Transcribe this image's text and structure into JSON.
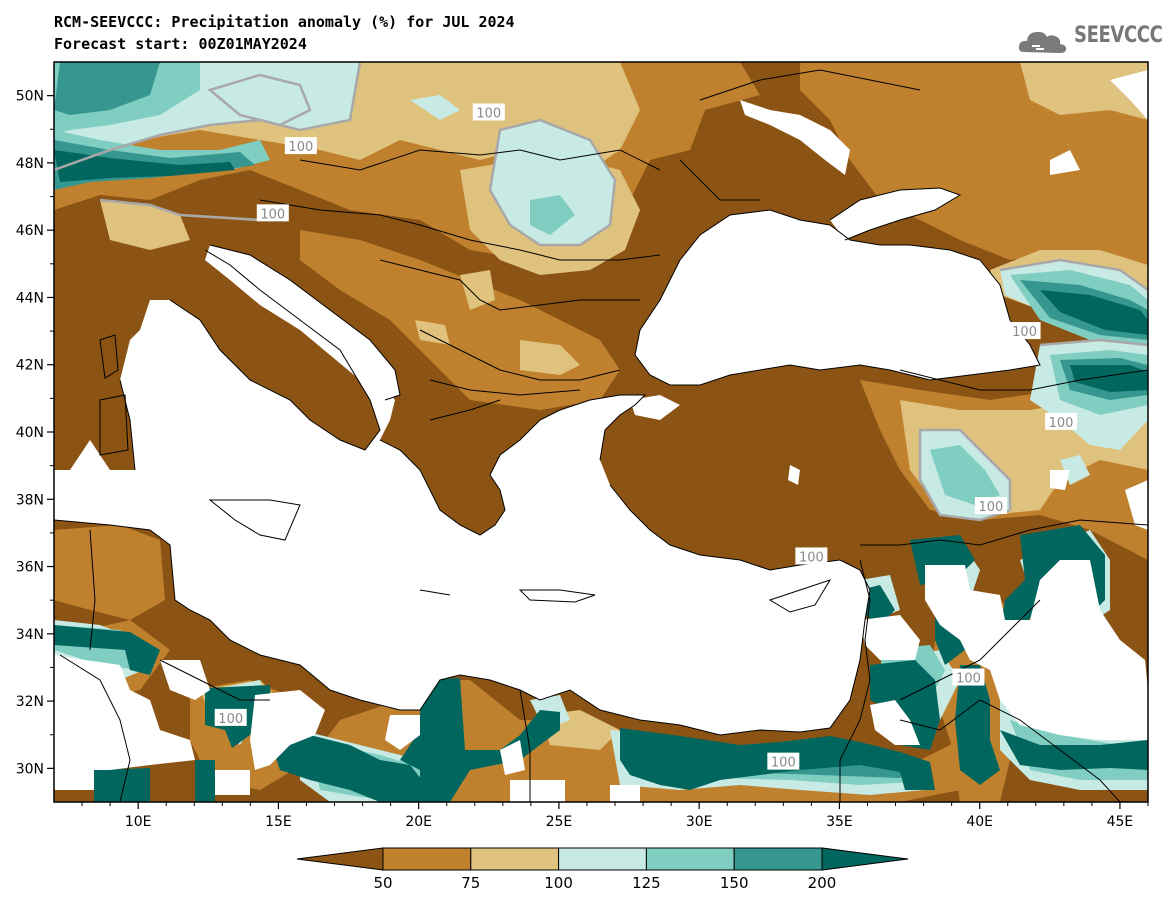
{
  "header": {
    "title_line1": "RCM-SEEVCCC: Precipitation anomaly (%) for JUL 2024",
    "title_line2": "Forecast start: 00Z01MAY2024",
    "logo_text": "SEEVCCC",
    "logo_icon": "cloud-icon"
  },
  "map": {
    "projection": "lat-lon",
    "lon_range": [
      7,
      46
    ],
    "lat_range": [
      29,
      51
    ],
    "lon_ticks": [
      "10E",
      "15E",
      "20E",
      "25E",
      "30E",
      "35E",
      "40E",
      "45E"
    ],
    "lon_tick_values": [
      10,
      15,
      20,
      25,
      30,
      35,
      40,
      45
    ],
    "lat_ticks": [
      "50N",
      "48N",
      "46N",
      "44N",
      "42N",
      "40N",
      "38N",
      "36N",
      "34N",
      "32N",
      "30N"
    ],
    "lat_tick_values": [
      50,
      48,
      46,
      44,
      42,
      40,
      38,
      36,
      34,
      32,
      30
    ],
    "contour_labels": [
      {
        "text": "100",
        "lon": 15.8,
        "lat": 48.5
      },
      {
        "text": "100",
        "lon": 22.5,
        "lat": 49.5
      },
      {
        "text": "100",
        "lon": 14.8,
        "lat": 46.5
      },
      {
        "text": "100",
        "lon": 41.6,
        "lat": 43.0
      },
      {
        "text": "100",
        "lon": 42.9,
        "lat": 40.3
      },
      {
        "text": "100",
        "lon": 40.4,
        "lat": 37.8
      },
      {
        "text": "100",
        "lon": 34.0,
        "lat": 36.3
      },
      {
        "text": "100",
        "lon": 39.6,
        "lat": 32.7
      },
      {
        "text": "100",
        "lon": 13.3,
        "lat": 31.5
      },
      {
        "text": "100",
        "lon": 33.0,
        "lat": 30.2
      }
    ]
  },
  "colorbar": {
    "labels": [
      "50",
      "75",
      "100",
      "125",
      "150",
      "200"
    ],
    "colors": [
      "#8c5414",
      "#bf812d",
      "#dfc27d",
      "#c7eae5",
      "#80cdc1",
      "#35978f",
      "#01665e"
    ]
  }
}
